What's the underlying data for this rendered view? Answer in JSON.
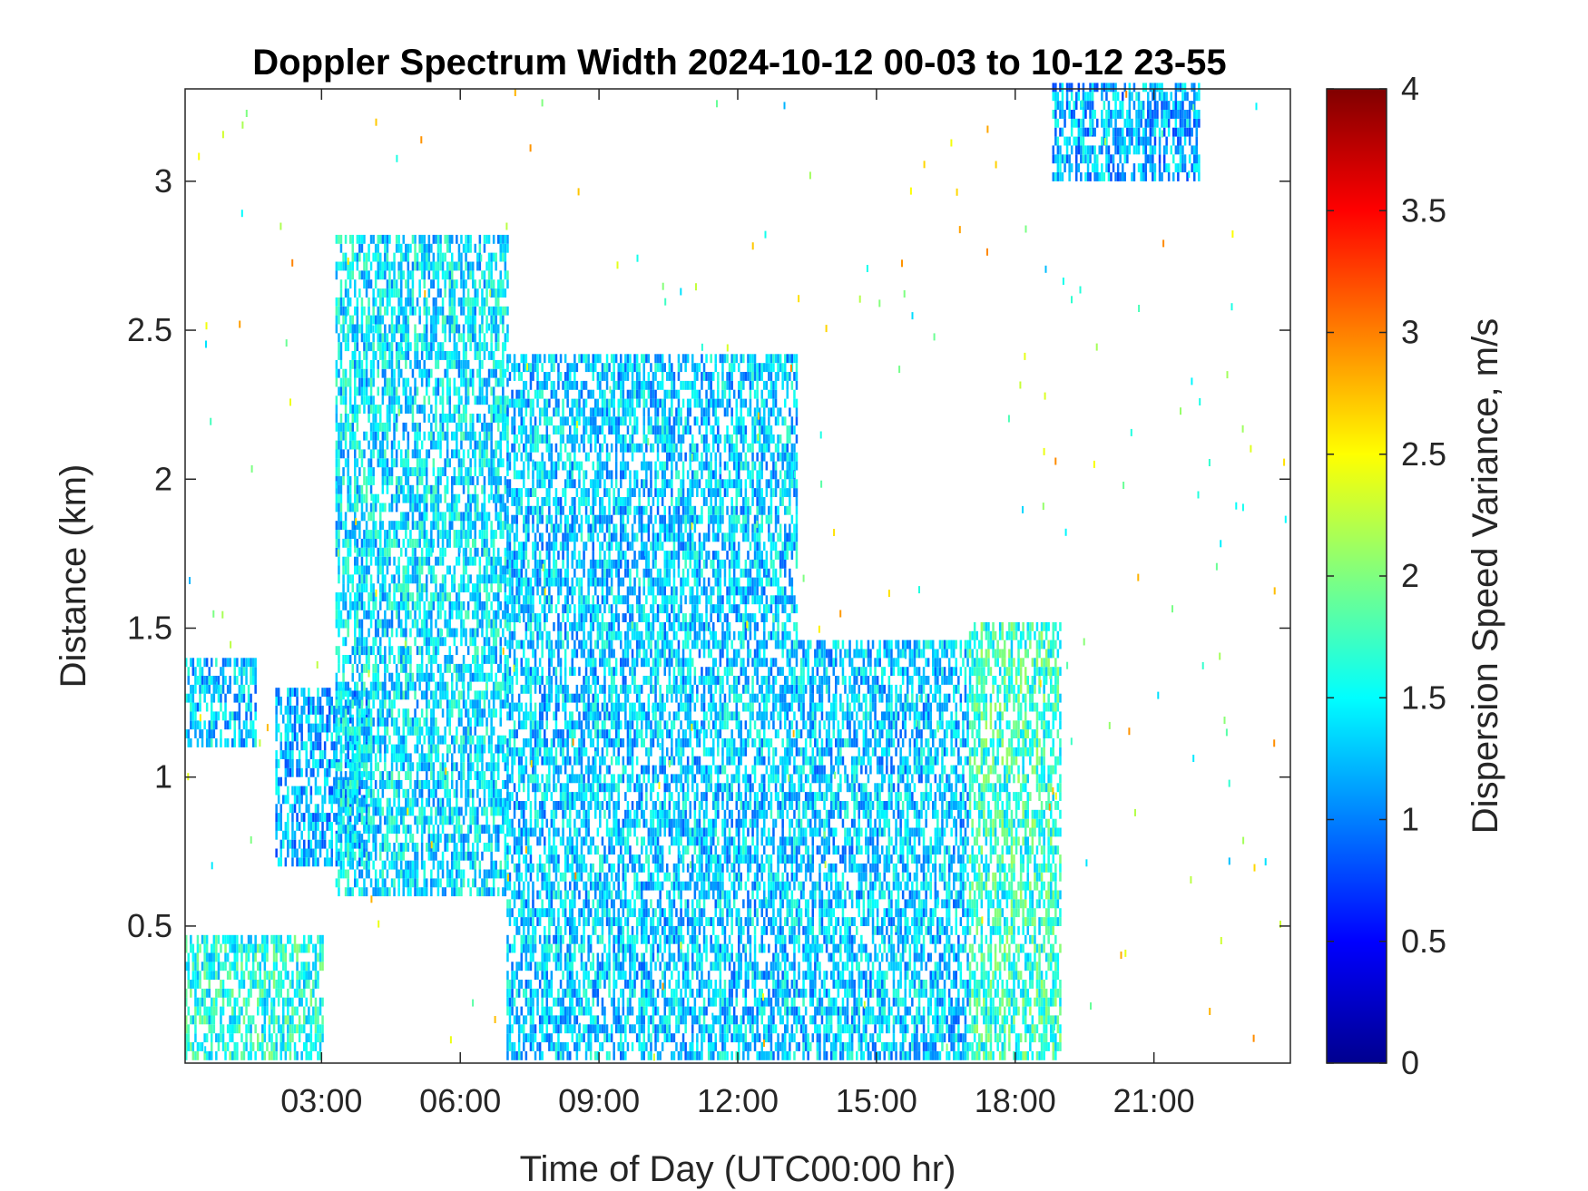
{
  "chart_data": {
    "type": "heatmap",
    "title": "Doppler Spectrum Width 2024-10-12 00-03 to 10-12 23-55",
    "xlabel": "Time of Day (UTC00:00 hr)",
    "ylabel": "Distance (km)",
    "xlim": [
      0.05,
      23.95
    ],
    "ylim": [
      0.04,
      3.31
    ],
    "xticks": [
      {
        "value": 3,
        "label": "03:00"
      },
      {
        "value": 6,
        "label": "06:00"
      },
      {
        "value": 9,
        "label": "09:00"
      },
      {
        "value": 12,
        "label": "12:00"
      },
      {
        "value": 15,
        "label": "15:00"
      },
      {
        "value": 18,
        "label": "18:00"
      },
      {
        "value": 21,
        "label": "21:00"
      }
    ],
    "yticks": [
      {
        "value": 0.5,
        "label": "0.5"
      },
      {
        "value": 1,
        "label": "1"
      },
      {
        "value": 1.5,
        "label": "1.5"
      },
      {
        "value": 2,
        "label": "2"
      },
      {
        "value": 2.5,
        "label": "2.5"
      },
      {
        "value": 3,
        "label": "3"
      }
    ],
    "colorbar": {
      "label": "Dispersion Speed Variance, m/s",
      "colormap": "jet",
      "range": [
        0,
        4
      ],
      "ticks": [
        {
          "value": 0,
          "label": "0"
        },
        {
          "value": 0.5,
          "label": "0.5"
        },
        {
          "value": 1,
          "label": "1"
        },
        {
          "value": 1.5,
          "label": "1.5"
        },
        {
          "value": 2,
          "label": "2"
        },
        {
          "value": 2.5,
          "label": "2.5"
        },
        {
          "value": 3,
          "label": "3"
        },
        {
          "value": 3.5,
          "label": "3.5"
        },
        {
          "value": 4,
          "label": "4"
        }
      ]
    },
    "dominant_value_range": [
      1.0,
      1.8
    ],
    "regions": [
      {
        "x": [
          0.05,
          1.6
        ],
        "y": [
          1.1,
          1.4
        ],
        "value": 1.3
      },
      {
        "x": [
          2.0,
          4.0
        ],
        "y": [
          0.7,
          1.3
        ],
        "value": 1.2
      },
      {
        "x": [
          3.3,
          7.0
        ],
        "y": [
          0.6,
          2.8
        ],
        "value": 1.4
      },
      {
        "x": [
          7.0,
          13.3
        ],
        "y": [
          0.05,
          2.4
        ],
        "value": 1.3
      },
      {
        "x": [
          13.3,
          17.0
        ],
        "y": [
          0.05,
          1.45
        ],
        "value": 1.3
      },
      {
        "x": [
          17.0,
          19.0
        ],
        "y": [
          0.05,
          1.5
        ],
        "value": 1.7
      },
      {
        "x": [
          0.05,
          3.0
        ],
        "y": [
          0.05,
          0.45
        ],
        "value": 1.6
      },
      {
        "x": [
          18.8,
          22.0
        ],
        "y": [
          3.0,
          3.31
        ],
        "value": 1.2
      }
    ],
    "grid": false,
    "colors": {
      "axes": "#262626",
      "background": "#ffffff"
    }
  }
}
